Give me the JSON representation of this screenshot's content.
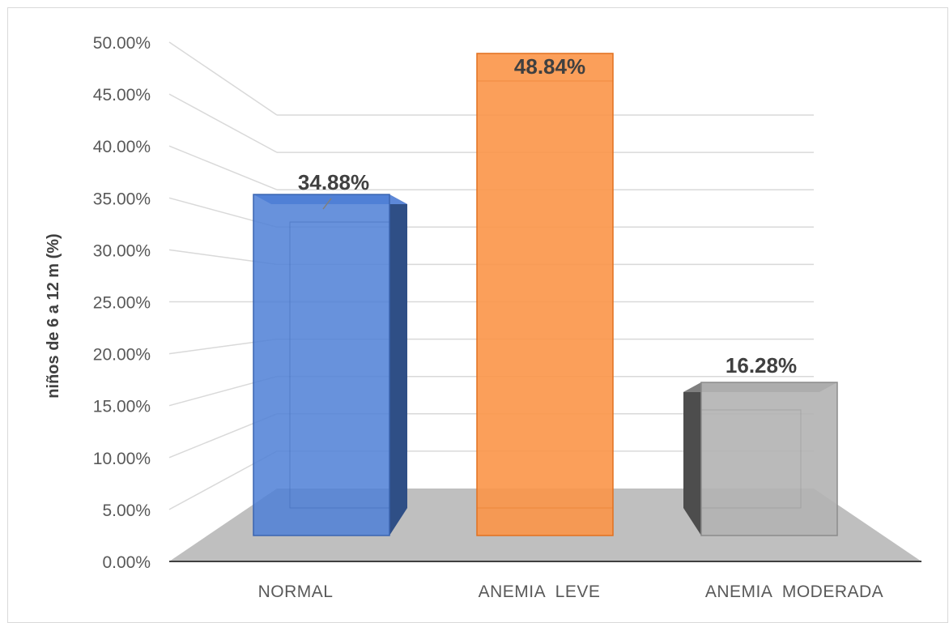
{
  "chart_data": {
    "type": "bar",
    "title": "",
    "xlabel": "",
    "ylabel": "niños de 6 a 12 m (%)",
    "categories": [
      "NORMAL",
      "ANEMIA  LEVE",
      "ANEMIA  MODERADA"
    ],
    "values": [
      34.88,
      48.84,
      16.28
    ],
    "value_labels": [
      "34.88%",
      "48.84%",
      "16.28%"
    ],
    "y_ticks": [
      "0.00%",
      "5.00%",
      "10.00%",
      "15.00%",
      "20.00%",
      "25.00%",
      "30.00%",
      "35.00%",
      "40.00%",
      "45.00%",
      "50.00%"
    ],
    "ylim": [
      0,
      50
    ],
    "grid": true,
    "legend": "none",
    "style": "3d-column",
    "colors": [
      "#4472c4",
      "#ed7d31",
      "#a5a5a5"
    ]
  }
}
